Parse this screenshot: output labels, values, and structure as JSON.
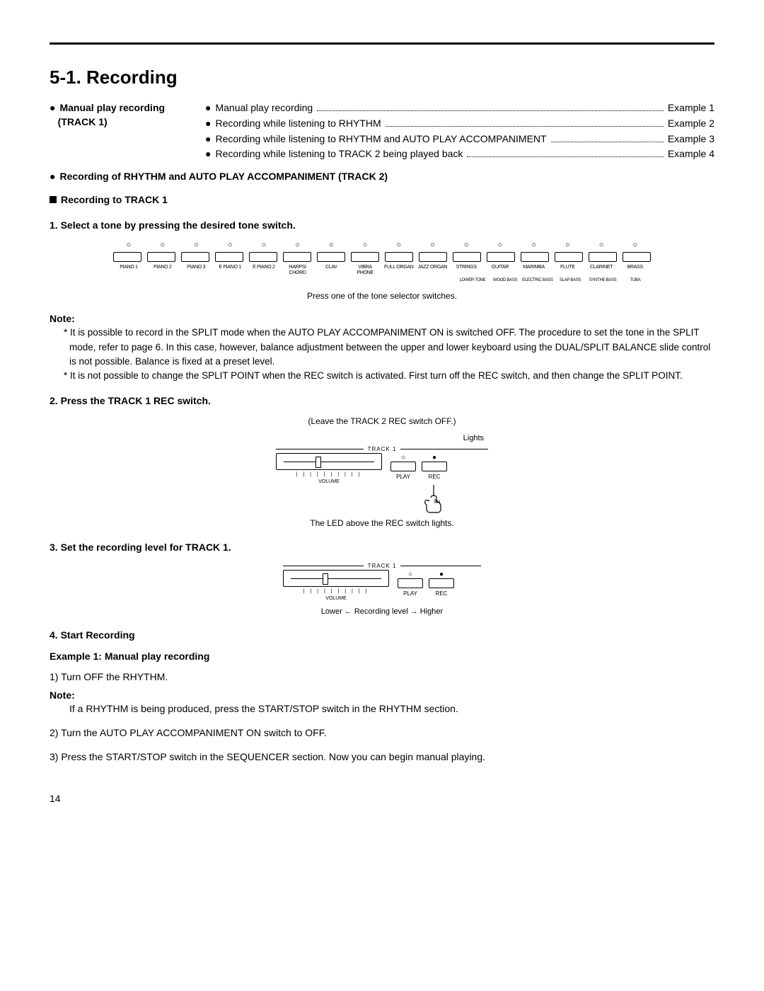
{
  "heading": "5-1. Recording",
  "toc": {
    "left_title": "Manual play recording",
    "left_sub": "(TRACK 1)",
    "lines": [
      {
        "label": "Manual play recording",
        "example": "Example 1"
      },
      {
        "label": "Recording while listening to RHYTHM",
        "example": "Example 2"
      },
      {
        "label": "Recording while listening to RHYTHM and AUTO PLAY ACCOMPANIMENT",
        "example": "Example 3"
      },
      {
        "label": "Recording while listening to TRACK 2 being played back",
        "example": "Example 4"
      }
    ],
    "bottom_line": "Recording of RHYTHM and AUTO PLAY ACCOMPANIMENT (TRACK 2)"
  },
  "section1": {
    "title": "Recording to TRACK 1",
    "step1": "1. Select a tone by pressing the desired tone switch."
  },
  "tones": {
    "items": [
      "PIANO 1",
      "PIANO 2",
      "PIANO 3",
      "E PIANO 1",
      "E PIANO 2",
      "HARPSI CHORD",
      "CLAV",
      "VIBRA PHONE",
      "FULL ORGAN",
      "JAZZ ORGAN",
      "STRINGS",
      "GUITAR",
      "MARIMBA",
      "FLUTE",
      "CLARINET",
      "BRASS"
    ],
    "sub": [
      "LOWER TONE",
      "WOOD BASS",
      "ELECTRIC BASS",
      "SLAP BASS",
      "SYNTHE BASS",
      "TUBA"
    ],
    "caption": "Press one of the tone selector switches."
  },
  "notes1": {
    "label": "Note:",
    "a": "It is possible to record in the SPLIT mode when the AUTO PLAY ACCOMPANIMENT ON is switched OFF. The procedure to set the tone in the SPLIT mode, refer to page 6. In this case, however, balance adjustment between the upper and lower keyboard using the DUAL/SPLIT BALANCE slide control is not possible. Balance is fixed at a preset level.",
    "b": "It is not possible to change the SPLIT POINT when the REC switch is activated. First turn off the REC switch, and then change the SPLIT POINT."
  },
  "step2": "2. Press the TRACK 1 REC switch.",
  "diagram1": {
    "top": "(Leave the TRACK 2 REC switch OFF.)",
    "track_label": "TRACK 1",
    "lights": "Lights",
    "volume_label": "VOLUME",
    "play": "PLAY",
    "rec": "REC",
    "bottom": "The LED above the REC switch lights."
  },
  "step3": "3. Set the recording level for TRACK 1.",
  "diagram2": {
    "track_label": "TRACK 1",
    "volume_label": "VOLUME",
    "play": "PLAY",
    "rec": "REC",
    "caption": "Lower ← Recording level → Higher"
  },
  "step4": {
    "title": "4. Start Recording",
    "ex_title": "Example 1: Manual play recording",
    "l1": "1) Turn OFF the RHYTHM.",
    "note_label": "Note:",
    "note_body": "If a RHYTHM is being produced, press the START/STOP switch in the RHYTHM section.",
    "l2": "2) Turn the AUTO PLAY ACCOMPANIMENT ON switch to OFF.",
    "l3": "3) Press the START/STOP switch in the SEQUENCER section. Now you can begin manual playing."
  },
  "page": "14"
}
